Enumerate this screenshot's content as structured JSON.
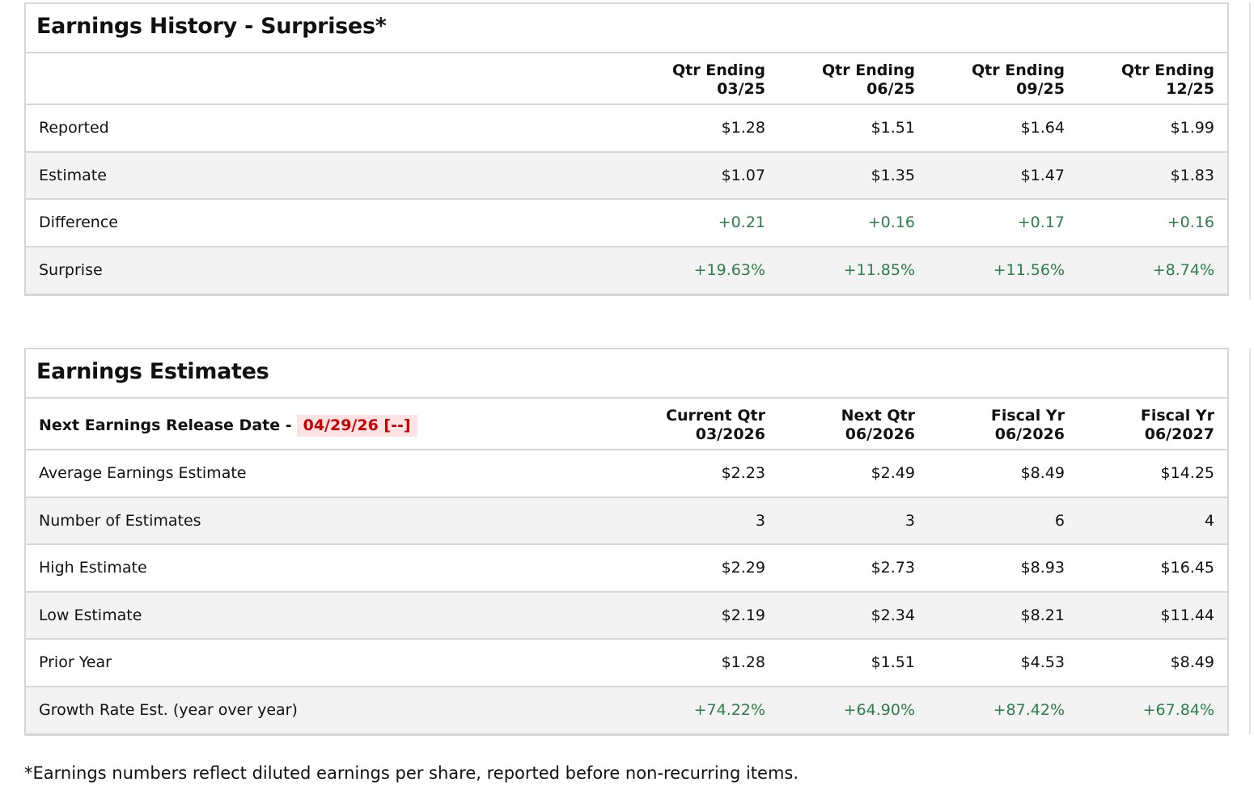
{
  "history": {
    "title": "Earnings History - Surprises*",
    "columns": [
      [
        "Qtr Ending",
        "03/25"
      ],
      [
        "Qtr Ending",
        "06/25"
      ],
      [
        "Qtr Ending",
        "09/25"
      ],
      [
        "Qtr Ending",
        "12/25"
      ]
    ],
    "rows": [
      {
        "label": "Reported",
        "values": [
          "$1.28",
          "$1.51",
          "$1.64",
          "$1.99"
        ]
      },
      {
        "label": "Estimate",
        "values": [
          "$1.07",
          "$1.35",
          "$1.47",
          "$1.83"
        ]
      },
      {
        "label": "Difference",
        "values": [
          "+0.21",
          "+0.16",
          "+0.17",
          "+0.16"
        ]
      },
      {
        "label": "Surprise",
        "values": [
          "+19.63%",
          "+11.85%",
          "+11.56%",
          "+8.74%"
        ]
      }
    ]
  },
  "estimates": {
    "title": "Earnings Estimates",
    "release_label": "Next Earnings Release Date -",
    "release_date": "04/29/26 [--]",
    "columns": [
      [
        "Current Qtr",
        "03/2026"
      ],
      [
        "Next Qtr",
        "06/2026"
      ],
      [
        "Fiscal Yr",
        "06/2026"
      ],
      [
        "Fiscal Yr",
        "06/2027"
      ]
    ],
    "rows": [
      {
        "label": "Average Earnings Estimate",
        "values": [
          "$2.23",
          "$2.49",
          "$8.49",
          "$14.25"
        ]
      },
      {
        "label": "Number of Estimates",
        "values": [
          "3",
          "3",
          "6",
          "4"
        ]
      },
      {
        "label": "High Estimate",
        "values": [
          "$2.29",
          "$2.73",
          "$8.93",
          "$16.45"
        ]
      },
      {
        "label": "Low Estimate",
        "values": [
          "$2.19",
          "$2.34",
          "$8.21",
          "$11.44"
        ]
      },
      {
        "label": "Prior Year",
        "values": [
          "$1.28",
          "$1.51",
          "$4.53",
          "$8.49"
        ]
      },
      {
        "label": "Growth Rate Est. (year over year)",
        "values": [
          "+74.22%",
          "+64.90%",
          "+87.42%",
          "+67.84%"
        ]
      }
    ]
  },
  "footnote": "*Earnings numbers reflect diluted earnings per share, reported before non-recurring items.",
  "colors": {
    "positive": "#2e7d4a",
    "date_text": "#c80000",
    "date_bg": "#fde3e3",
    "alt_row": "#f3f3f3"
  }
}
